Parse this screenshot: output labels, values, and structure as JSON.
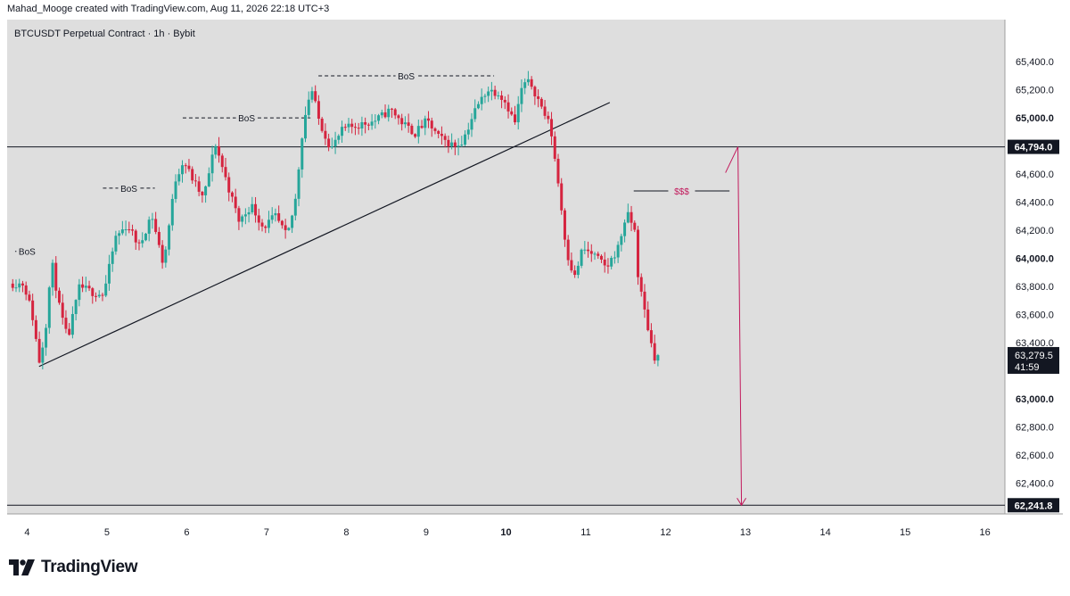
{
  "header": {
    "attribution": "Mahad_Mooge created with TradingView.com, Aug 11, 2026 22:18 UTC+3",
    "symbol_title": "BTCUSDT Perpetual Contract · 1h · Bybit"
  },
  "brand": {
    "name": "TradingView",
    "logo_icon": "tradingview-logo-icon"
  },
  "colors": {
    "up": "#26a69a",
    "down": "#d5243f",
    "background": "#dedede",
    "annotation": "#c2185b"
  },
  "chart_data": {
    "type": "candlestick",
    "title": "BTCUSDT Perpetual Contract · 1h · Bybit",
    "ylim": [
      62180,
      65700
    ],
    "xlim": [
      3.75,
      16.25
    ],
    "x_ticks": [
      4,
      5,
      6,
      7,
      8,
      9,
      10,
      11,
      12,
      13,
      14,
      15,
      16
    ],
    "x_tick_labels": [
      "4",
      "5",
      "6",
      "7",
      "8",
      "9",
      "10",
      "11",
      "12",
      "13",
      "14",
      "15",
      "16"
    ],
    "bold_x_ticks": [
      10
    ],
    "y_ticks": [
      62400,
      62600,
      62800,
      63000,
      63200,
      63400,
      63600,
      63800,
      64000,
      64200,
      64400,
      64600,
      64800,
      65000,
      65200,
      65400
    ],
    "y_tick_labels": [
      "62,400.0",
      "62,600.0",
      "62,800.0",
      "63,000.0",
      "63,200.0",
      "63,400.0",
      "63,600.0",
      "63,800.0",
      "64,000.0",
      "64,200.0",
      "64,400.0",
      "64,600.0",
      "64,800.0",
      "65,000.0",
      "65,200.0",
      "65,400.0"
    ],
    "bold_y_ticks": [
      63000,
      64000,
      65000
    ],
    "hidden_y_ticks": [
      64800,
      63200
    ],
    "grid": false,
    "price_path": [
      [
        4.0,
        63820
      ],
      [
        4.1,
        63620
      ],
      [
        4.2,
        63250
      ],
      [
        4.28,
        63540
      ],
      [
        4.35,
        63980
      ],
      [
        4.45,
        63640
      ],
      [
        4.55,
        63420
      ],
      [
        4.7,
        63800
      ],
      [
        4.85,
        63760
      ],
      [
        5.0,
        63740
      ],
      [
        5.15,
        64150
      ],
      [
        5.3,
        64240
      ],
      [
        5.45,
        64080
      ],
      [
        5.6,
        64320
      ],
      [
        5.75,
        63950
      ],
      [
        5.9,
        64560
      ],
      [
        6.0,
        64700
      ],
      [
        6.1,
        64580
      ],
      [
        6.25,
        64420
      ],
      [
        6.4,
        64820
      ],
      [
        6.55,
        64530
      ],
      [
        6.7,
        64260
      ],
      [
        6.85,
        64380
      ],
      [
        7.0,
        64220
      ],
      [
        7.15,
        64300
      ],
      [
        7.3,
        64150
      ],
      [
        7.4,
        64400
      ],
      [
        7.5,
        64950
      ],
      [
        7.6,
        65220
      ],
      [
        7.7,
        64980
      ],
      [
        7.85,
        64780
      ],
      [
        8.0,
        64920
      ],
      [
        8.2,
        64950
      ],
      [
        8.4,
        64980
      ],
      [
        8.6,
        65060
      ],
      [
        8.75,
        64960
      ],
      [
        8.9,
        64890
      ],
      [
        9.05,
        64980
      ],
      [
        9.2,
        64860
      ],
      [
        9.4,
        64800
      ],
      [
        9.5,
        64840
      ],
      [
        9.65,
        65050
      ],
      [
        9.8,
        65200
      ],
      [
        9.95,
        65180
      ],
      [
        10.05,
        65100
      ],
      [
        10.15,
        64960
      ],
      [
        10.25,
        65240
      ],
      [
        10.35,
        65250
      ],
      [
        10.5,
        65060
      ],
      [
        10.6,
        64930
      ],
      [
        10.7,
        64520
      ],
      [
        10.8,
        64050
      ],
      [
        10.9,
        63860
      ],
      [
        11.0,
        64070
      ],
      [
        11.15,
        64020
      ],
      [
        11.3,
        63930
      ],
      [
        11.45,
        64080
      ],
      [
        11.55,
        64320
      ],
      [
        11.65,
        64220
      ],
      [
        11.7,
        63850
      ],
      [
        11.78,
        63620
      ],
      [
        11.85,
        63420
      ],
      [
        11.9,
        63300
      ]
    ],
    "last_price": {
      "label": "63,279.5",
      "countdown": "41:59",
      "value": 63279.5
    },
    "price_lines": [
      {
        "label": "64,794.0",
        "value": 64794.0
      },
      {
        "label": "62,241.8",
        "value": 62241.8
      }
    ],
    "annotations": {
      "trendline": {
        "from": [
          4.15,
          63230
        ],
        "to": [
          11.3,
          65110
        ]
      },
      "bos": [
        {
          "label": "BoS",
          "x_start": 3.85,
          "x_end": 4.15,
          "price": 64050
        },
        {
          "label": "BoS",
          "x_start": 4.95,
          "x_end": 5.6,
          "price": 64500
        },
        {
          "label": "BoS",
          "x_start": 5.95,
          "x_end": 7.55,
          "price": 65000
        },
        {
          "label": "BoS",
          "x_start": 7.65,
          "x_end": 9.85,
          "price": 65300
        }
      ],
      "liquidity": {
        "label": "$$$",
        "x_start": 11.6,
        "x_end": 12.8,
        "price": 64480
      },
      "arrow": {
        "x_from": 12.75,
        "x_to": 12.95,
        "price_from": 64610,
        "price_top": 64794.0,
        "price_bottom": 62241.8
      }
    }
  }
}
